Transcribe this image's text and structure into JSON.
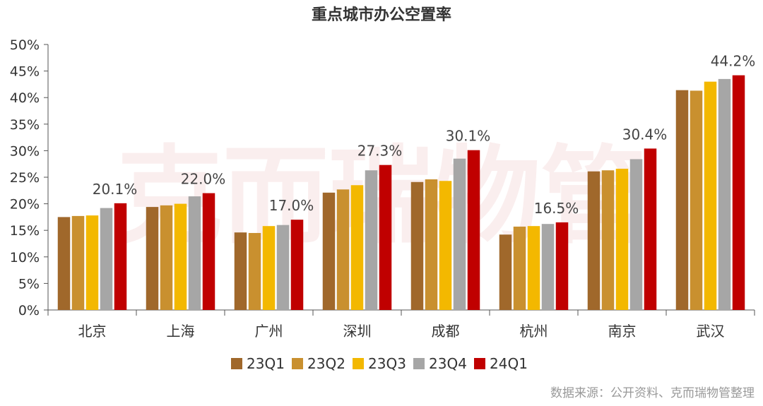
{
  "chart_data": {
    "type": "bar",
    "title": "重点城市办公空置率",
    "categories": [
      "北京",
      "上海",
      "广州",
      "深圳",
      "成都",
      "杭州",
      "南京",
      "武汉"
    ],
    "series": [
      {
        "name": "23Q1",
        "color": "#a0682b",
        "values": [
          17.5,
          19.4,
          14.6,
          22.1,
          24.1,
          14.2,
          26.1,
          41.4
        ]
      },
      {
        "name": "23Q2",
        "color": "#c9902f",
        "values": [
          17.7,
          19.7,
          14.5,
          22.7,
          24.6,
          15.7,
          26.3,
          41.3
        ]
      },
      {
        "name": "23Q3",
        "color": "#f3b800",
        "values": [
          17.8,
          20.0,
          15.8,
          23.5,
          24.3,
          15.8,
          26.6,
          43.0
        ]
      },
      {
        "name": "23Q4",
        "color": "#a6a6a6",
        "values": [
          19.2,
          21.4,
          16.0,
          26.3,
          28.5,
          16.2,
          28.4,
          43.5
        ]
      },
      {
        "name": "24Q1",
        "color": "#c00000",
        "values": [
          20.1,
          22.0,
          17.0,
          27.3,
          30.1,
          16.5,
          30.4,
          44.2
        ]
      }
    ],
    "data_labels": [
      "20.1%",
      "22.0%",
      "17.0%",
      "27.3%",
      "30.1%",
      "16.5%",
      "30.4%",
      "44.2%"
    ],
    "yticks": [
      "0%",
      "5%",
      "10%",
      "15%",
      "20%",
      "25%",
      "30%",
      "35%",
      "40%",
      "45%",
      "50%"
    ],
    "ylim": [
      0,
      50
    ],
    "legend_position": "bottom-center",
    "xlabel": "",
    "ylabel": ""
  },
  "watermark": "克而瑞物管",
  "source_note": "数据来源：公开资料、克而瑞物管整理"
}
